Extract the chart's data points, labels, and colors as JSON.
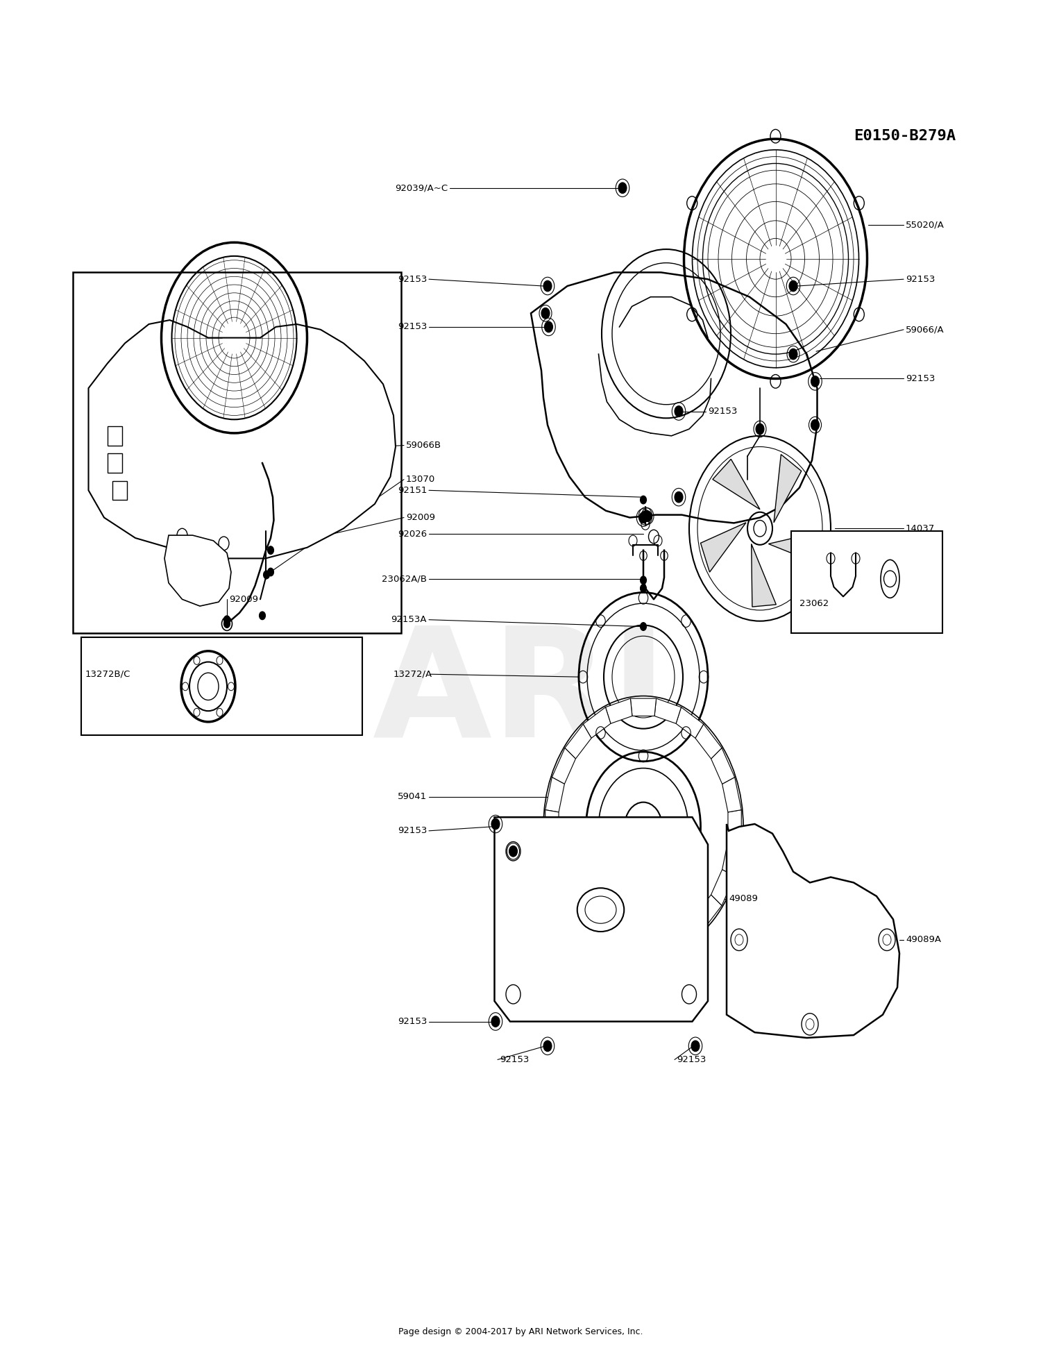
{
  "bg_color": "#ffffff",
  "diagram_id": "E0150-B279A",
  "footer": "Page design © 2004-2017 by ARI Network Services, Inc.",
  "watermark": "ARI",
  "fig_w": 15.0,
  "fig_h": 19.62,
  "dpi": 100
}
